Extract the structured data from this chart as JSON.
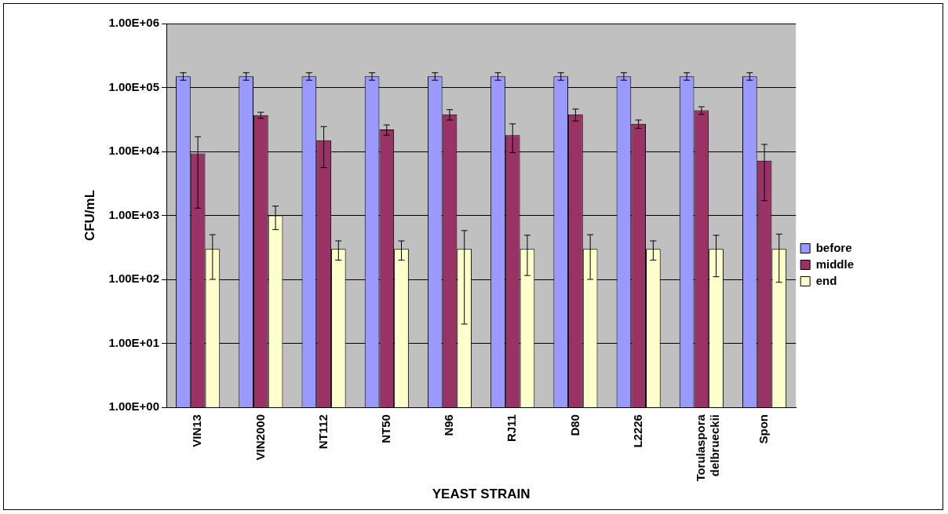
{
  "chart_data": {
    "type": "bar",
    "xlabel": "YEAST STRAIN",
    "ylabel": "CFU/mL",
    "categories": [
      "VIN13",
      "VIN2000",
      "NT112",
      "NT50",
      "N96",
      "RJ11",
      "D80",
      "L2226",
      "Torulaspora delbrueckii",
      "Spon"
    ],
    "series": [
      {
        "name": "before",
        "color": "#9999ff",
        "values": [
          150000,
          150000,
          150000,
          150000,
          150000,
          150000,
          150000,
          150000,
          150000,
          150000
        ],
        "errors": [
          [
            130000,
            170000
          ],
          [
            130000,
            170000
          ],
          [
            130000,
            170000
          ],
          [
            130000,
            170000
          ],
          [
            130000,
            170000
          ],
          [
            130000,
            170000
          ],
          [
            130000,
            170000
          ],
          [
            130000,
            170000
          ],
          [
            130000,
            170000
          ],
          [
            130000,
            170000
          ]
        ]
      },
      {
        "name": "middle",
        "color": "#993366",
        "values": [
          9300,
          37000,
          15000,
          22000,
          38000,
          18000,
          38000,
          27000,
          44000,
          7200
        ],
        "errors": [
          [
            1300,
            17000
          ],
          [
            33000,
            41000
          ],
          [
            5600,
            24500
          ],
          [
            18000,
            26000
          ],
          [
            31000,
            45000
          ],
          [
            9600,
            27000
          ],
          [
            30000,
            46000
          ],
          [
            23000,
            31000
          ],
          [
            38000,
            50000
          ],
          [
            1700,
            12900
          ]
        ]
      },
      {
        "name": "end",
        "color": "#ffffcc",
        "values": [
          300,
          1000,
          300,
          300,
          300,
          300,
          300,
          300,
          300,
          300
        ],
        "errors": [
          [
            100,
            500
          ],
          [
            600,
            1400
          ],
          [
            200,
            400
          ],
          [
            200,
            400
          ],
          [
            20,
            580
          ],
          [
            115,
            490
          ],
          [
            100,
            500
          ],
          [
            200,
            400
          ],
          [
            110,
            490
          ],
          [
            90,
            510
          ]
        ]
      }
    ],
    "log": "y",
    "ylim": [
      1,
      1000000
    ],
    "yticks": [
      {
        "value": 1,
        "label": "1.00E+00"
      },
      {
        "value": 10,
        "label": "1.00E+01"
      },
      {
        "value": 100,
        "label": "1.00E+02"
      },
      {
        "value": 1000,
        "label": "1.00E+03"
      },
      {
        "value": 10000,
        "label": "1.00E+04"
      },
      {
        "value": 100000,
        "label": "1.00E+05"
      },
      {
        "value": 1000000,
        "label": "1.00E+06"
      }
    ],
    "grid": "y",
    "legend": "right"
  }
}
